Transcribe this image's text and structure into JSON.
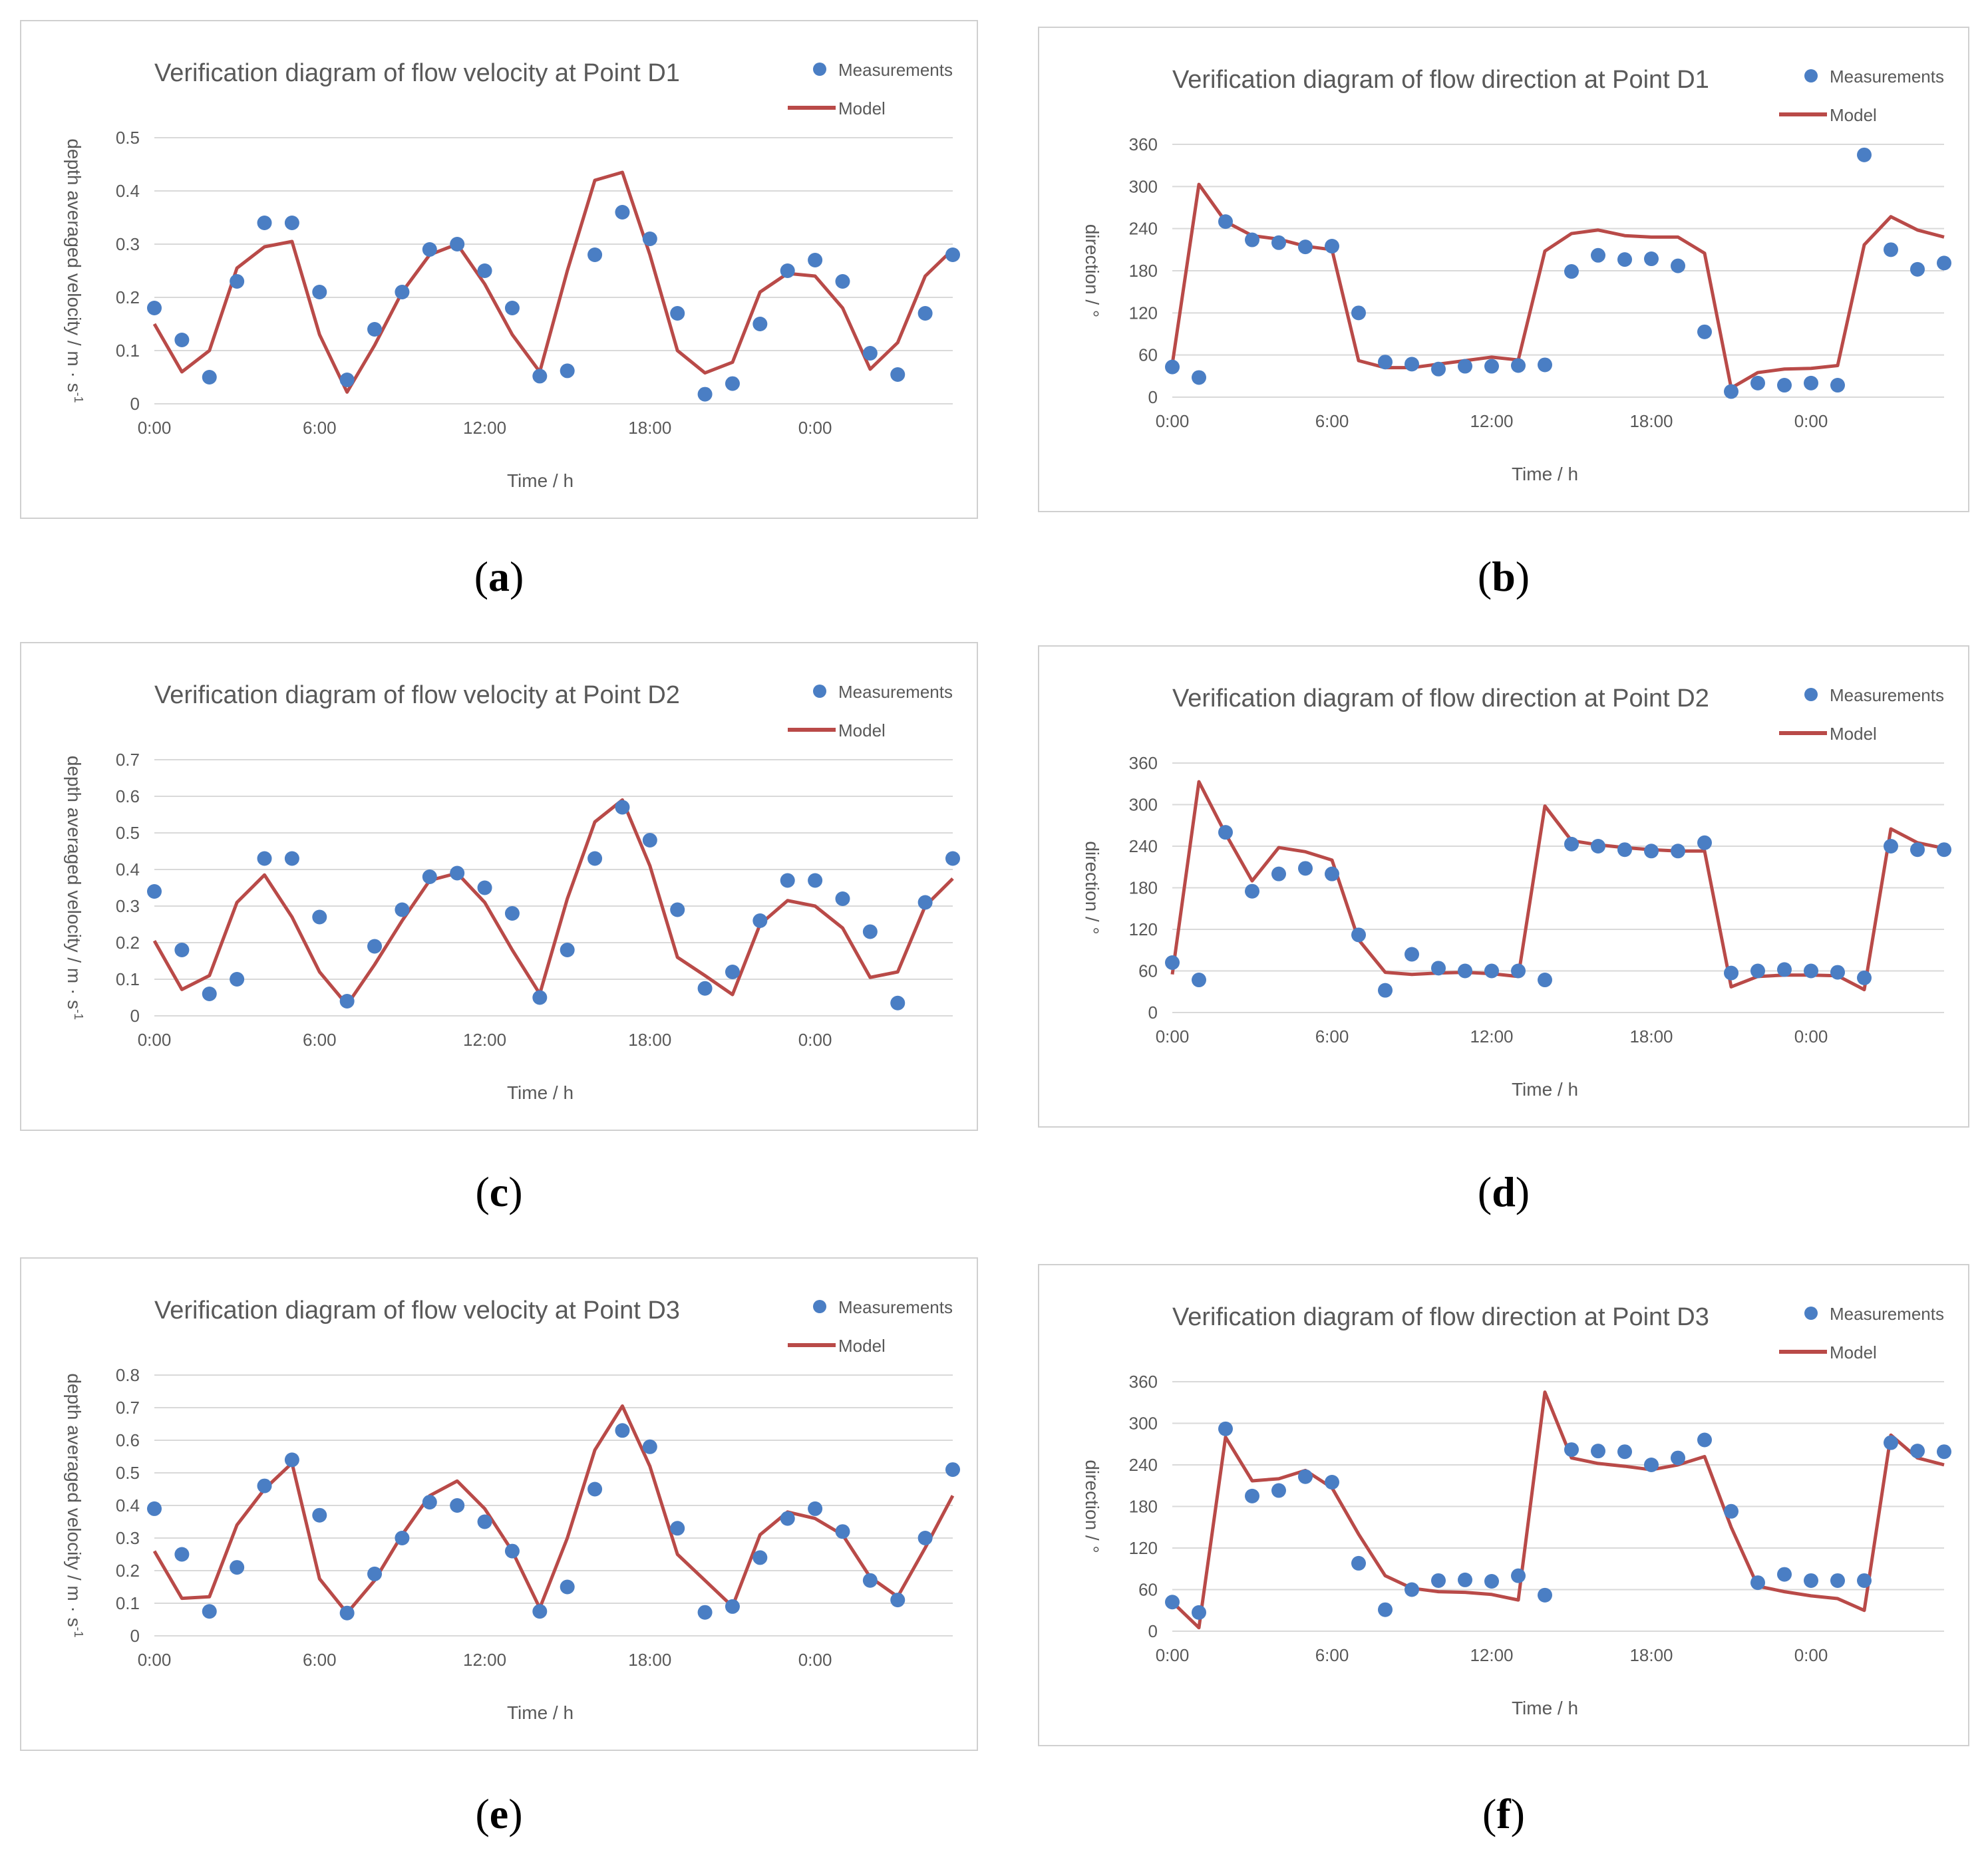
{
  "colors": {
    "measurement": "#4a7ec4",
    "model": "#b94a48",
    "grid": "#d9d9d9",
    "text": "#595959"
  },
  "legend": {
    "measurements": "Measurements",
    "model": "Model"
  },
  "captions": [
    "a",
    "b",
    "c",
    "d",
    "e",
    "f"
  ],
  "chart_data": [
    {
      "type": "scatter+line",
      "id": "a",
      "title": "Verification diagram of flow velocity at Point D1",
      "xlabel": "Time   / h",
      "ylabel": "depth averaged velocity  / m · s",
      "ylabel_sup": "-1",
      "x_tick_labels": [
        "0:00",
        "6:00",
        "12:00",
        "18:00",
        "0:00"
      ],
      "x_tick_hours": [
        0,
        6,
        12,
        18,
        24
      ],
      "xlim": [
        0,
        29
      ],
      "ylim": [
        0,
        0.5
      ],
      "y_ticks": [
        0,
        0.1,
        0.2,
        0.3,
        0.4,
        0.5
      ],
      "y_tick_labels": [
        "0",
        "0.1",
        "0.2",
        "0.3",
        "0.4",
        "0.5"
      ],
      "measurements": [
        0.18,
        0.12,
        0.05,
        0.23,
        0.34,
        0.34,
        0.21,
        0.045,
        0.14,
        0.21,
        0.29,
        0.3,
        0.25,
        0.18,
        0.052,
        0.062,
        0.28,
        0.36,
        0.31,
        0.17,
        0.018,
        0.038,
        0.15,
        0.25,
        0.27,
        0.23,
        0.095,
        0.055,
        0.17,
        0.28
      ],
      "model": [
        0.15,
        0.06,
        0.1,
        0.255,
        0.295,
        0.305,
        0.13,
        0.022,
        0.11,
        0.21,
        0.28,
        0.3,
        0.225,
        0.13,
        0.06,
        0.25,
        0.42,
        0.435,
        0.28,
        0.1,
        0.058,
        0.078,
        0.21,
        0.245,
        0.24,
        0.18,
        0.065,
        0.115,
        0.24,
        0.29
      ]
    },
    {
      "type": "scatter+line",
      "id": "b",
      "title": "Verification diagram of flow direction at Point D1",
      "xlabel": "Time   / h",
      "ylabel": "direction  /  °",
      "ylabel_sup": "",
      "x_tick_labels": [
        "0:00",
        "6:00",
        "12:00",
        "18:00",
        "0:00"
      ],
      "x_tick_hours": [
        0,
        6,
        12,
        18,
        24
      ],
      "xlim": [
        0,
        29
      ],
      "ylim": [
        0,
        360
      ],
      "y_ticks": [
        0,
        60,
        120,
        180,
        240,
        300,
        360
      ],
      "y_tick_labels": [
        "0",
        "60",
        "120",
        "180",
        "240",
        "300",
        "360"
      ],
      "measurements": [
        43,
        28,
        250,
        224,
        220,
        214,
        215,
        120,
        50,
        47,
        40,
        44,
        44,
        45,
        46,
        179,
        202,
        196,
        197,
        187,
        93,
        8,
        20,
        17,
        20,
        17,
        345,
        210,
        182,
        191
      ],
      "model": [
        47,
        303,
        250,
        230,
        225,
        215,
        210,
        52,
        42,
        42,
        47,
        52,
        57,
        53,
        208,
        233,
        238,
        230,
        228,
        228,
        205,
        13,
        35,
        40,
        41,
        45,
        217,
        257,
        238,
        228
      ]
    },
    {
      "type": "scatter+line",
      "id": "c",
      "title": "Verification diagram of flow velocity at Point D2",
      "xlabel": "Time   / h",
      "ylabel": "depth averaged velocity  / m · s",
      "ylabel_sup": "-1",
      "x_tick_labels": [
        "0:00",
        "6:00",
        "12:00",
        "18:00",
        "0:00"
      ],
      "x_tick_hours": [
        0,
        6,
        12,
        18,
        24
      ],
      "xlim": [
        0,
        29
      ],
      "ylim": [
        0,
        0.7
      ],
      "y_ticks": [
        0,
        0.1,
        0.2,
        0.3,
        0.4,
        0.5,
        0.6,
        0.7
      ],
      "y_tick_labels": [
        "0",
        "0.1",
        "0.2",
        "0.3",
        "0.4",
        "0.5",
        "0.6",
        "0.7"
      ],
      "measurements": [
        0.34,
        0.18,
        0.06,
        0.1,
        0.43,
        0.43,
        0.27,
        0.04,
        0.19,
        0.29,
        0.38,
        0.39,
        0.35,
        0.28,
        0.05,
        0.18,
        0.43,
        0.57,
        0.48,
        0.29,
        0.075,
        0.12,
        0.26,
        0.37,
        0.37,
        0.32,
        0.23,
        0.035,
        0.31,
        0.43
      ],
      "model": [
        0.205,
        0.072,
        0.11,
        0.31,
        0.385,
        0.27,
        0.12,
        0.03,
        0.14,
        0.26,
        0.37,
        0.39,
        0.31,
        0.18,
        0.06,
        0.32,
        0.53,
        0.59,
        0.41,
        0.16,
        0.11,
        0.058,
        0.25,
        0.315,
        0.3,
        0.24,
        0.105,
        0.12,
        0.3,
        0.375
      ]
    },
    {
      "type": "scatter+line",
      "id": "d",
      "title": "Verification diagram of flow direction at Point D2",
      "xlabel": "Time   / h",
      "ylabel": "direction  /  °",
      "ylabel_sup": "",
      "x_tick_labels": [
        "0:00",
        "6:00",
        "12:00",
        "18:00",
        "0:00"
      ],
      "x_tick_hours": [
        0,
        6,
        12,
        18,
        24
      ],
      "xlim": [
        0,
        29
      ],
      "ylim": [
        0,
        360
      ],
      "y_ticks": [
        0,
        60,
        120,
        180,
        240,
        300,
        360
      ],
      "y_tick_labels": [
        "0",
        "60",
        "120",
        "180",
        "240",
        "300",
        "360"
      ],
      "measurements": [
        72,
        47,
        260,
        175,
        200,
        208,
        200,
        112,
        32,
        84,
        64,
        60,
        60,
        60,
        47,
        243,
        240,
        235,
        233,
        233,
        245,
        57,
        60,
        62,
        60,
        58,
        50,
        240,
        235,
        235
      ],
      "model": [
        55,
        333,
        258,
        190,
        238,
        232,
        220,
        105,
        58,
        55,
        57,
        58,
        56,
        52,
        298,
        248,
        242,
        238,
        235,
        233,
        233,
        37,
        52,
        54,
        54,
        53,
        33,
        265,
        245,
        237
      ]
    },
    {
      "type": "scatter+line",
      "id": "e",
      "title": "Verification diagram of flow velocity at Point D3",
      "xlabel": "Time   / h",
      "ylabel": "depth averaged velocity  / m · s",
      "ylabel_sup": "-1",
      "x_tick_labels": [
        "0:00",
        "6:00",
        "12:00",
        "18:00",
        "0:00"
      ],
      "x_tick_hours": [
        0,
        6,
        12,
        18,
        24
      ],
      "xlim": [
        0,
        29
      ],
      "ylim": [
        0,
        0.8
      ],
      "y_ticks": [
        0,
        0.1,
        0.2,
        0.3,
        0.4,
        0.5,
        0.6,
        0.7,
        0.8
      ],
      "y_tick_labels": [
        "0",
        "0.1",
        "0.2",
        "0.3",
        "0.4",
        "0.5",
        "0.6",
        "0.7",
        "0.8"
      ],
      "measurements": [
        0.39,
        0.25,
        0.075,
        0.21,
        0.46,
        0.54,
        0.37,
        0.07,
        0.19,
        0.3,
        0.41,
        0.4,
        0.35,
        0.26,
        0.075,
        0.15,
        0.45,
        0.63,
        0.58,
        0.33,
        0.072,
        0.09,
        0.24,
        0.36,
        0.39,
        0.32,
        0.17,
        0.11,
        0.3,
        0.51
      ],
      "model": [
        0.26,
        0.115,
        0.12,
        0.34,
        0.45,
        0.53,
        0.175,
        0.07,
        0.17,
        0.31,
        0.43,
        0.475,
        0.39,
        0.26,
        0.085,
        0.3,
        0.57,
        0.705,
        0.52,
        0.25,
        0.17,
        0.09,
        0.31,
        0.38,
        0.36,
        0.31,
        0.18,
        0.12,
        0.27,
        0.43
      ]
    },
    {
      "type": "scatter+line",
      "id": "f",
      "title": "Verification diagram of flow direction at Point D3",
      "xlabel": "Time   / h",
      "ylabel": "direction  /  °",
      "ylabel_sup": "",
      "x_tick_labels": [
        "0:00",
        "6:00",
        "12:00",
        "18:00",
        "0:00"
      ],
      "x_tick_hours": [
        0,
        6,
        12,
        18,
        24
      ],
      "xlim": [
        0,
        29
      ],
      "ylim": [
        0,
        360
      ],
      "y_ticks": [
        0,
        60,
        120,
        180,
        240,
        300,
        360
      ],
      "y_tick_labels": [
        "0",
        "60",
        "120",
        "180",
        "240",
        "300",
        "360"
      ],
      "measurements": [
        42,
        27,
        292,
        195,
        203,
        223,
        215,
        98,
        31,
        60,
        73,
        74,
        72,
        80,
        52,
        262,
        260,
        259,
        240,
        250,
        276,
        173,
        70,
        82,
        73,
        73,
        73,
        272,
        260,
        259
      ],
      "model": [
        42,
        5,
        280,
        217,
        220,
        232,
        207,
        140,
        80,
        62,
        57,
        56,
        53,
        45,
        345,
        250,
        242,
        238,
        233,
        240,
        252,
        150,
        65,
        57,
        51,
        47,
        30,
        283,
        250,
        240
      ]
    }
  ]
}
